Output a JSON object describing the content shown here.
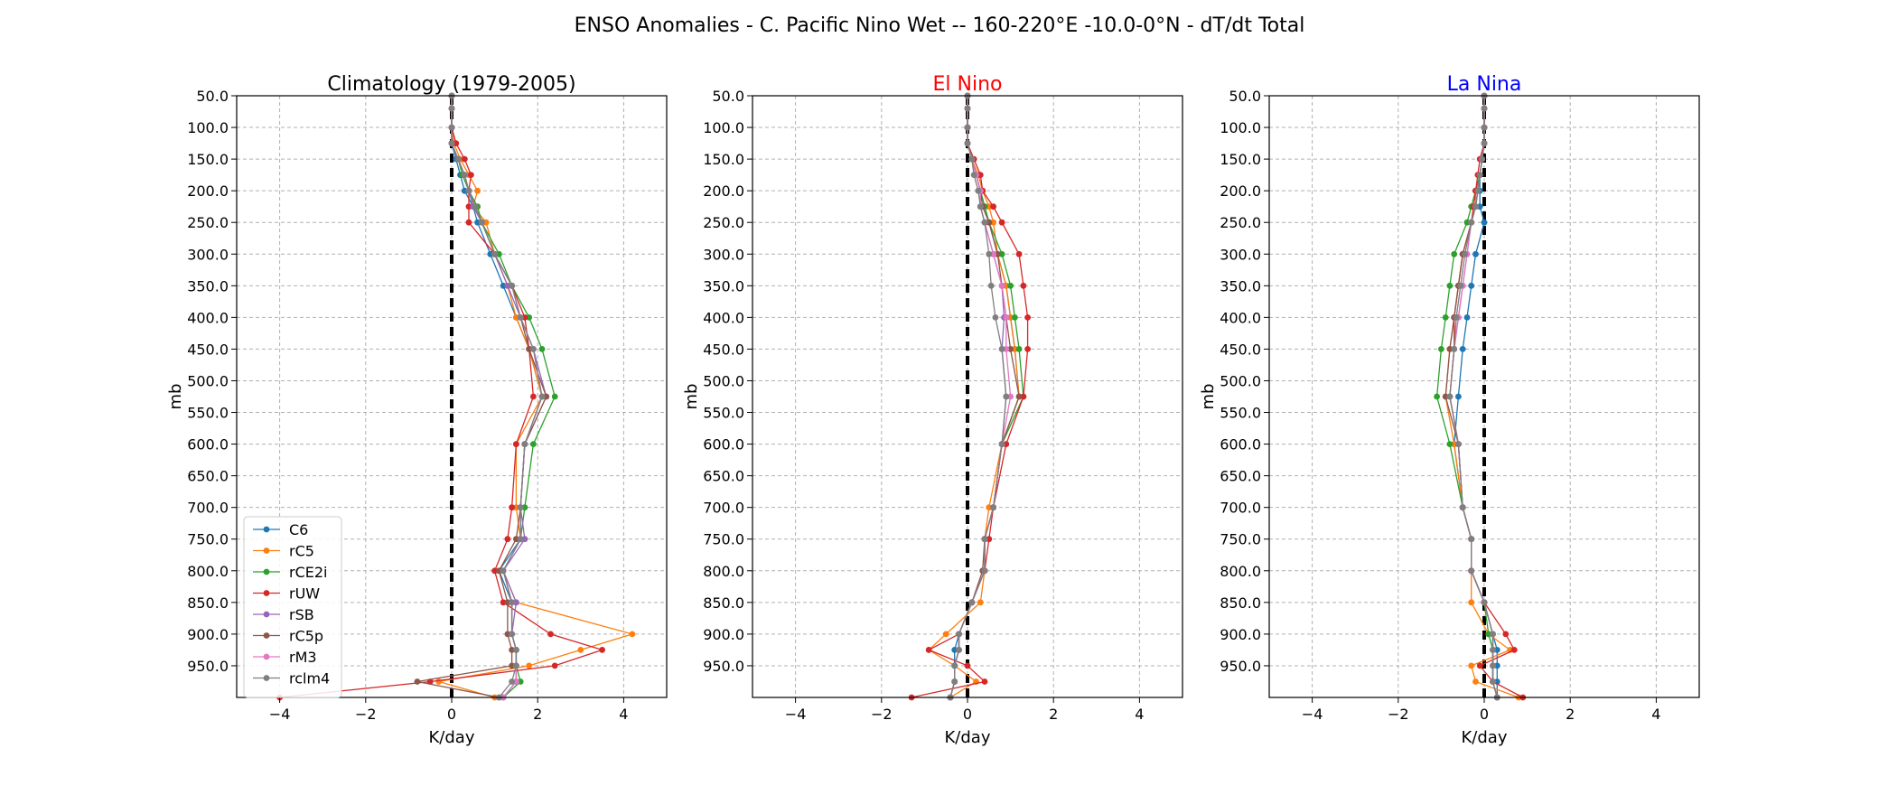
{
  "suptitle": "ENSO Anomalies - C. Pacific Nino Wet -- 160-220°E -10.0-0°N - dT/dt Total",
  "series_colors": {
    "C6": "#1f77b4",
    "rC5": "#ff7f0e",
    "rCE2i": "#2ca02c",
    "rUW": "#d62728",
    "rSB": "#9467bd",
    "rC5p": "#8c564b",
    "rM3": "#e377c2",
    "rclm4": "#7f7f7f"
  },
  "chart_data": [
    {
      "type": "line",
      "title": "Climatology (1979-2005)",
      "title_color": "#000000",
      "xlabel": "K/day",
      "ylabel": "mb",
      "xlim": [
        -5,
        5
      ],
      "ylim": [
        50,
        1000
      ],
      "y_inverted": true,
      "xticks": [
        -4,
        -2,
        0,
        2,
        4
      ],
      "xtick_labels": [
        "−4",
        "−2",
        "0",
        "2",
        "4"
      ],
      "yticks": [
        50,
        100,
        150,
        200,
        250,
        300,
        350,
        400,
        450,
        500,
        550,
        600,
        650,
        700,
        750,
        800,
        850,
        900,
        950
      ],
      "ytick_labels": [
        "50.0",
        "100.0",
        "150.0",
        "200.0",
        "250.0",
        "300.0",
        "350.0",
        "400.0",
        "450.0",
        "500.0",
        "550.0",
        "600.0",
        "650.0",
        "700.0",
        "750.0",
        "800.0",
        "850.0",
        "900.0",
        "950.0"
      ],
      "grid": true,
      "legend": "lower-left",
      "levels": [
        50,
        70,
        100,
        125,
        150,
        175,
        200,
        225,
        250,
        300,
        350,
        400,
        450,
        525,
        600,
        700,
        750,
        800,
        850,
        900,
        925,
        950,
        975,
        1000
      ],
      "series": [
        {
          "name": "C6",
          "x": [
            0,
            0,
            0,
            0,
            0.1,
            0.2,
            0.3,
            0.5,
            0.6,
            0.9,
            1.2,
            1.5,
            1.8,
            2.1,
            1.7,
            1.6,
            1.6,
            1.1,
            1.4,
            1.4,
            1.5,
            1.5,
            1.5,
            1.2
          ]
        },
        {
          "name": "rC5",
          "x": [
            0,
            0,
            0,
            0.05,
            0.2,
            0.4,
            0.6,
            0.5,
            0.8,
            1.0,
            1.3,
            1.5,
            1.8,
            2.1,
            1.5,
            1.5,
            1.6,
            1.2,
            1.5,
            4.2,
            3.0,
            1.8,
            -0.3,
            1.0
          ]
        },
        {
          "name": "rCE2i",
          "x": [
            0,
            0,
            0,
            0,
            0.15,
            0.25,
            0.4,
            0.6,
            0.7,
            1.1,
            1.4,
            1.8,
            2.1,
            2.4,
            1.9,
            1.7,
            1.6,
            1.2,
            1.4,
            1.4,
            1.5,
            1.5,
            1.6,
            1.2
          ]
        },
        {
          "name": "rUW",
          "x": [
            0,
            0,
            0,
            0.1,
            0.3,
            0.45,
            0.4,
            0.4,
            0.4,
            1.0,
            1.4,
            1.7,
            1.8,
            1.9,
            1.5,
            1.4,
            1.3,
            1.0,
            1.2,
            2.3,
            3.5,
            2.4,
            -0.5,
            -4.0
          ]
        },
        {
          "name": "rSB",
          "x": [
            0,
            0,
            0,
            0,
            0.15,
            0.3,
            0.4,
            0.5,
            0.7,
            1.0,
            1.3,
            1.6,
            1.9,
            2.2,
            1.7,
            1.6,
            1.7,
            1.2,
            1.5,
            1.4,
            1.5,
            1.5,
            1.5,
            1.2
          ]
        },
        {
          "name": "rC5p",
          "x": [
            0,
            0,
            0,
            0,
            0.15,
            0.3,
            0.4,
            0.55,
            0.7,
            1.0,
            1.4,
            1.6,
            1.8,
            2.2,
            1.7,
            1.6,
            1.5,
            1.1,
            1.3,
            1.3,
            1.4,
            1.4,
            -0.8,
            1.1
          ]
        },
        {
          "name": "rM3",
          "x": [
            0,
            0,
            0,
            0,
            0.15,
            0.3,
            0.4,
            0.55,
            0.7,
            1.0,
            1.4,
            1.6,
            1.9,
            2.1,
            1.7,
            1.6,
            1.6,
            1.2,
            1.4,
            1.4,
            1.5,
            1.5,
            1.5,
            1.2
          ]
        },
        {
          "name": "rclm4",
          "x": [
            0,
            0,
            0,
            0,
            0.15,
            0.3,
            0.4,
            0.55,
            0.7,
            1.0,
            1.4,
            1.6,
            1.9,
            2.1,
            1.7,
            1.6,
            1.6,
            1.2,
            1.4,
            1.4,
            1.5,
            1.5,
            1.4,
            1.1
          ]
        }
      ]
    },
    {
      "type": "line",
      "title": "El Nino",
      "title_color": "#ff0000",
      "xlabel": "K/day",
      "ylabel": "mb",
      "xlim": [
        -5,
        5
      ],
      "ylim": [
        50,
        1000
      ],
      "y_inverted": true,
      "xticks": [
        -4,
        -2,
        0,
        2,
        4
      ],
      "xtick_labels": [
        "−4",
        "−2",
        "0",
        "2",
        "4"
      ],
      "yticks": [
        50,
        100,
        150,
        200,
        250,
        300,
        350,
        400,
        450,
        500,
        550,
        600,
        650,
        700,
        750,
        800,
        850,
        900,
        950
      ],
      "ytick_labels": [
        "50.0",
        "100.0",
        "150.0",
        "200.0",
        "250.0",
        "300.0",
        "350.0",
        "400.0",
        "450.0",
        "500.0",
        "550.0",
        "600.0",
        "650.0",
        "700.0",
        "750.0",
        "800.0",
        "850.0",
        "900.0",
        "950.0"
      ],
      "grid": true,
      "levels": [
        50,
        70,
        100,
        125,
        150,
        175,
        200,
        225,
        250,
        300,
        350,
        400,
        450,
        525,
        600,
        700,
        750,
        800,
        850,
        900,
        925,
        950,
        975,
        1000
      ],
      "series": [
        {
          "name": "C6",
          "x": [
            0,
            0,
            0,
            0,
            0.1,
            0.2,
            0.3,
            0.4,
            0.5,
            0.7,
            0.9,
            1.0,
            1.1,
            1.2,
            0.8,
            0.6,
            0.4,
            0.4,
            0.1,
            -0.2,
            -0.3,
            -0.3,
            -0.3,
            -0.4
          ]
        },
        {
          "name": "rC5",
          "x": [
            0,
            0,
            0,
            0,
            0.1,
            0.25,
            0.35,
            0.5,
            0.6,
            0.7,
            0.9,
            1.0,
            1.1,
            1.2,
            0.8,
            0.5,
            0.4,
            0.4,
            0.3,
            -0.5,
            -0.9,
            -0.3,
            0.2,
            -0.4
          ]
        },
        {
          "name": "rCE2i",
          "x": [
            0,
            0,
            0,
            0,
            0.1,
            0.2,
            0.3,
            0.4,
            0.5,
            0.8,
            1.0,
            1.1,
            1.2,
            1.3,
            0.8,
            0.6,
            0.4,
            0.4,
            0.1,
            -0.2,
            -0.2,
            -0.3,
            -0.3,
            -0.4
          ]
        },
        {
          "name": "rUW",
          "x": [
            0,
            0,
            0,
            0,
            0.15,
            0.3,
            0.35,
            0.6,
            0.8,
            1.2,
            1.3,
            1.4,
            1.4,
            1.3,
            0.9,
            0.6,
            0.5,
            0.4,
            0.1,
            -0.2,
            -0.9,
            0.0,
            0.4,
            -1.3
          ]
        },
        {
          "name": "rSB",
          "x": [
            0,
            0,
            0,
            0,
            0.1,
            0.2,
            0.3,
            0.3,
            0.4,
            0.6,
            0.8,
            0.85,
            0.8,
            0.9,
            0.8,
            0.6,
            0.4,
            0.4,
            0.1,
            -0.2,
            -0.2,
            -0.3,
            -0.3,
            -0.4
          ]
        },
        {
          "name": "rC5p",
          "x": [
            0,
            0,
            0,
            0,
            0.1,
            0.2,
            0.3,
            0.35,
            0.5,
            0.7,
            0.8,
            0.9,
            1.0,
            1.2,
            0.8,
            0.6,
            0.4,
            0.35,
            0.1,
            -0.2,
            -0.2,
            -0.3,
            -0.3,
            -0.4
          ]
        },
        {
          "name": "rM3",
          "x": [
            0,
            0,
            0,
            0,
            0.1,
            0.2,
            0.3,
            0.3,
            0.4,
            0.6,
            0.8,
            0.9,
            0.9,
            1.0,
            0.8,
            0.6,
            0.4,
            0.4,
            0.1,
            -0.2,
            -0.2,
            -0.3,
            -0.3,
            -0.4
          ]
        },
        {
          "name": "rclm4",
          "x": [
            0,
            0,
            0,
            0,
            0.1,
            0.15,
            0.25,
            0.3,
            0.4,
            0.5,
            0.55,
            0.65,
            0.8,
            0.9,
            0.8,
            0.6,
            0.4,
            0.4,
            0.1,
            -0.2,
            -0.2,
            -0.3,
            -0.3,
            -0.4
          ]
        }
      ]
    },
    {
      "type": "line",
      "title": "La Nina",
      "title_color": "#0000ff",
      "xlabel": "K/day",
      "ylabel": "mb",
      "xlim": [
        -5,
        5
      ],
      "ylim": [
        50,
        1000
      ],
      "y_inverted": true,
      "xticks": [
        -4,
        -2,
        0,
        2,
        4
      ],
      "xtick_labels": [
        "−4",
        "−2",
        "0",
        "2",
        "4"
      ],
      "yticks": [
        50,
        100,
        150,
        200,
        250,
        300,
        350,
        400,
        450,
        500,
        550,
        600,
        650,
        700,
        750,
        800,
        850,
        900,
        950
      ],
      "ytick_labels": [
        "50.0",
        "100.0",
        "150.0",
        "200.0",
        "250.0",
        "300.0",
        "350.0",
        "400.0",
        "450.0",
        "500.0",
        "550.0",
        "600.0",
        "650.0",
        "700.0",
        "750.0",
        "800.0",
        "850.0",
        "900.0",
        "950.0"
      ],
      "grid": true,
      "levels": [
        50,
        70,
        100,
        125,
        150,
        175,
        200,
        225,
        250,
        300,
        350,
        400,
        450,
        525,
        600,
        700,
        750,
        800,
        850,
        900,
        925,
        950,
        975,
        1000
      ],
      "series": [
        {
          "name": "C6",
          "x": [
            0,
            0,
            0,
            0,
            -0.05,
            -0.1,
            -0.1,
            -0.1,
            0.0,
            -0.2,
            -0.3,
            -0.4,
            -0.5,
            -0.6,
            -0.7,
            -0.5,
            -0.3,
            -0.3,
            0.0,
            0.2,
            0.3,
            0.3,
            0.3,
            0.3
          ]
        },
        {
          "name": "rC5",
          "x": [
            0,
            0,
            0,
            0,
            -0.05,
            -0.1,
            -0.2,
            -0.2,
            -0.3,
            -0.5,
            -0.6,
            -0.7,
            -0.8,
            -0.9,
            -0.7,
            -0.5,
            -0.3,
            -0.3,
            -0.3,
            0.1,
            0.6,
            -0.3,
            -0.2,
            0.8
          ]
        },
        {
          "name": "rCE2i",
          "x": [
            0,
            0,
            0,
            0,
            -0.05,
            -0.1,
            -0.2,
            -0.3,
            -0.4,
            -0.7,
            -0.8,
            -0.9,
            -1.0,
            -1.1,
            -0.8,
            -0.5,
            -0.3,
            -0.3,
            0.0,
            0.1,
            0.2,
            0.2,
            0.2,
            0.3
          ]
        },
        {
          "name": "rUW",
          "x": [
            0,
            0,
            0,
            0,
            -0.1,
            -0.15,
            -0.2,
            -0.25,
            -0.3,
            -0.5,
            -0.6,
            -0.7,
            -0.7,
            -0.8,
            -0.6,
            -0.5,
            -0.3,
            -0.3,
            0.0,
            0.5,
            0.7,
            -0.1,
            0.2,
            0.9
          ]
        },
        {
          "name": "rSB",
          "x": [
            0,
            0,
            0,
            0,
            -0.05,
            -0.1,
            -0.15,
            -0.2,
            -0.3,
            -0.4,
            -0.5,
            -0.6,
            -0.7,
            -0.8,
            -0.6,
            -0.5,
            -0.3,
            -0.3,
            0.0,
            0.2,
            0.2,
            0.2,
            0.2,
            0.3
          ]
        },
        {
          "name": "rC5p",
          "x": [
            0,
            0,
            0,
            0,
            -0.05,
            -0.1,
            -0.15,
            -0.2,
            -0.3,
            -0.5,
            -0.6,
            -0.7,
            -0.8,
            -0.9,
            -0.6,
            -0.5,
            -0.3,
            -0.3,
            0.0,
            0.2,
            0.2,
            0.2,
            0.2,
            0.3
          ]
        },
        {
          "name": "rM3",
          "x": [
            0,
            0,
            0,
            0,
            -0.05,
            -0.1,
            -0.15,
            -0.2,
            -0.3,
            -0.4,
            -0.5,
            -0.6,
            -0.7,
            -0.8,
            -0.6,
            -0.5,
            -0.3,
            -0.3,
            0.0,
            0.2,
            0.2,
            0.2,
            0.2,
            0.3
          ]
        },
        {
          "name": "rclm4",
          "x": [
            0,
            0,
            0,
            0,
            -0.05,
            -0.1,
            -0.15,
            -0.2,
            -0.3,
            -0.45,
            -0.55,
            -0.65,
            -0.7,
            -0.8,
            -0.6,
            -0.5,
            -0.3,
            -0.3,
            0.0,
            0.2,
            0.2,
            0.2,
            0.2,
            0.3
          ]
        }
      ]
    }
  ]
}
